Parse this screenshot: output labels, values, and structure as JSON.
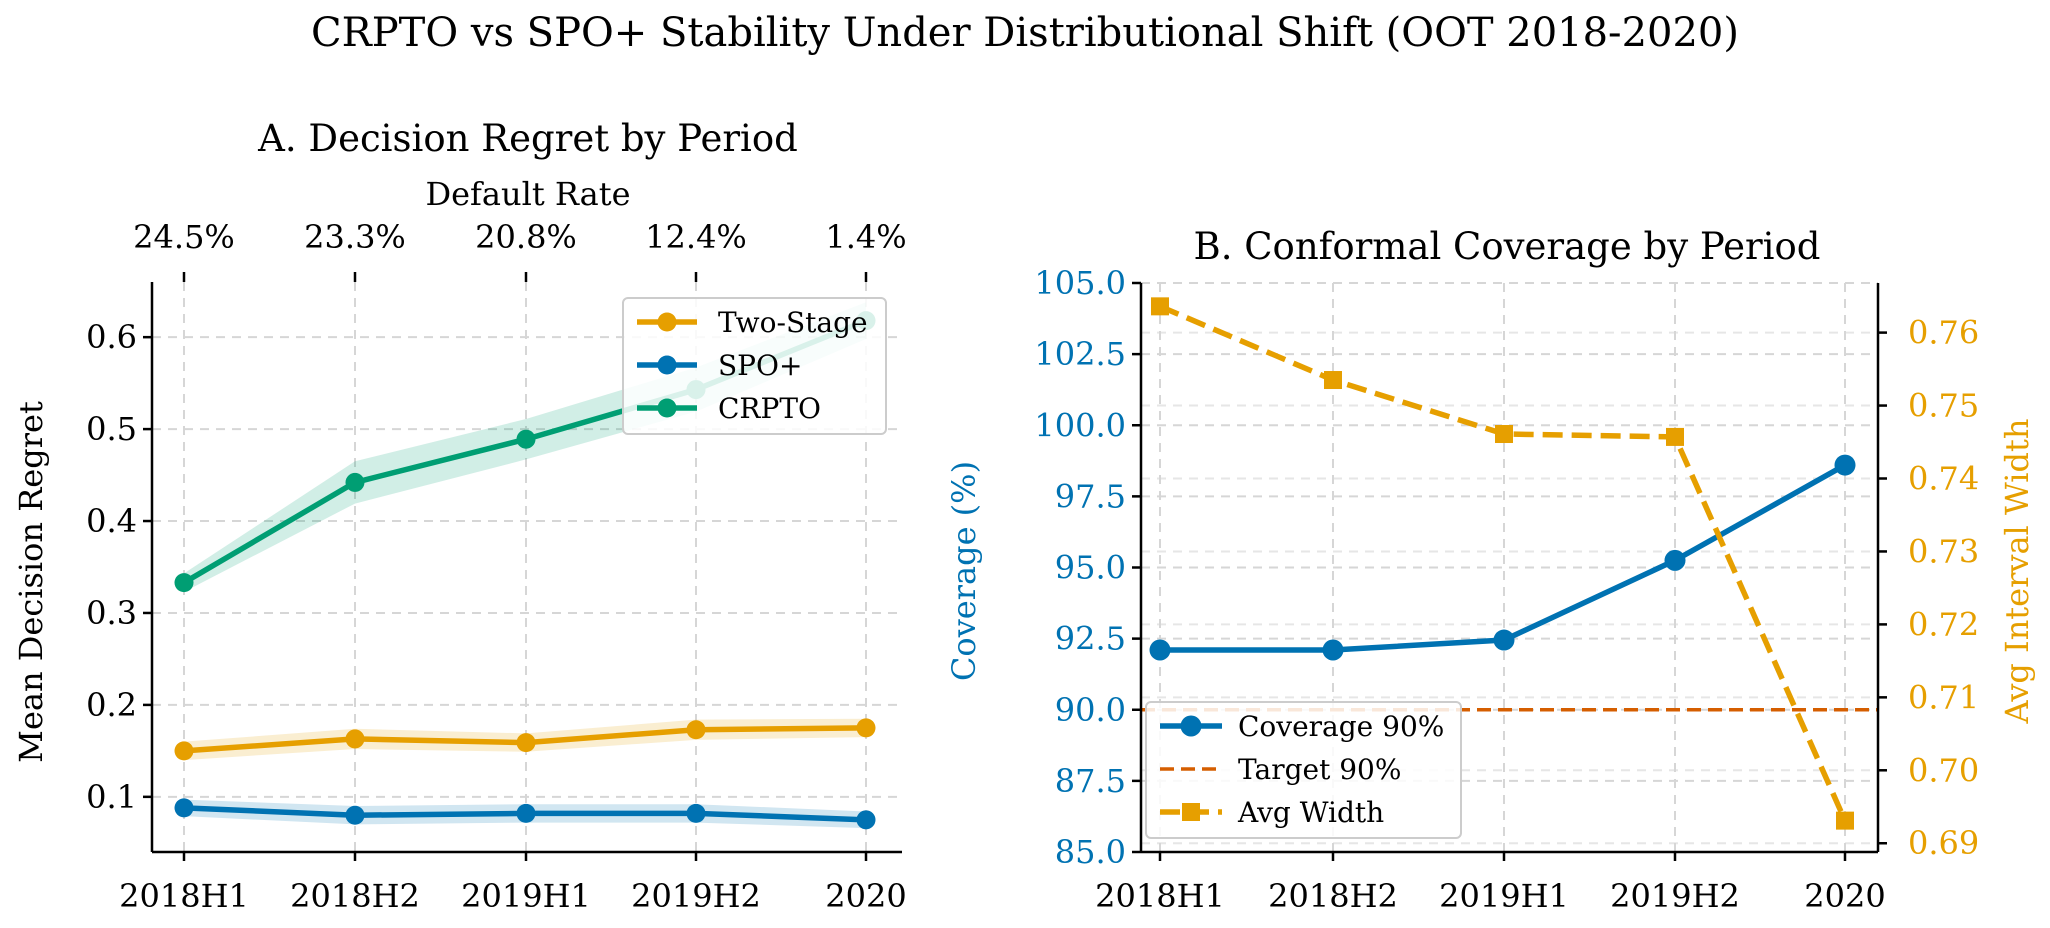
{
  "figure": {
    "suptitle": "CRPTO vs SPO+ Stability Under Distributional Shift (OOT 2018-2020)"
  },
  "colors": {
    "two_stage": "#E69F00",
    "spo_plus": "#0072B2",
    "crpto": "#009E73",
    "target": "#D55E00",
    "axis": "#000000",
    "grid": "#d6d6d6"
  },
  "chart_data": [
    {
      "id": "panel-a",
      "type": "line",
      "title": "A. Decision Regret by Period",
      "xlabel": "",
      "ylabel": "Mean Decision Regret",
      "categories": [
        "2018H1",
        "2018H2",
        "2019H1",
        "2019H2",
        "2020"
      ],
      "secondary_xlabel": "Default Rate",
      "secondary_x_ticks": [
        "24.5%",
        "23.3%",
        "20.8%",
        "12.4%",
        "1.4%"
      ],
      "ylim": [
        0.04,
        0.66
      ],
      "yticks": [
        0.1,
        0.2,
        0.3,
        0.4,
        0.5,
        0.6
      ],
      "ytick_labels": [
        "0.1",
        "0.2",
        "0.3",
        "0.4",
        "0.5",
        "0.6"
      ],
      "grid": true,
      "legend": "top-right",
      "series": [
        {
          "name": "Two-Stage",
          "color_key": "two_stage",
          "values": [
            0.15,
            0.163,
            0.159,
            0.173,
            0.175
          ],
          "band": [
            0.01,
            0.011,
            0.01,
            0.011,
            0.01
          ]
        },
        {
          "name": "SPO+",
          "color_key": "spo_plus",
          "values": [
            0.088,
            0.08,
            0.082,
            0.082,
            0.075
          ],
          "band": [
            0.009,
            0.01,
            0.01,
            0.01,
            0.009
          ]
        },
        {
          "name": "CRPTO",
          "color_key": "crpto",
          "values": [
            0.333,
            0.442,
            0.489,
            0.543,
            0.618
          ],
          "band": [
            0.01,
            0.023,
            0.022,
            0.024,
            0.02
          ]
        }
      ]
    },
    {
      "id": "panel-b",
      "type": "line",
      "title": "B. Conformal Coverage by Period",
      "xlabel": "",
      "ylabel": "Coverage (%)",
      "y2label": "Avg Interval Width",
      "categories": [
        "2018H1",
        "2018H2",
        "2019H1",
        "2019H2",
        "2020"
      ],
      "ylim": [
        85.0,
        105.0
      ],
      "yticks": [
        85.0,
        87.5,
        90.0,
        92.5,
        95.0,
        97.5,
        100.0,
        102.5,
        105.0
      ],
      "ytick_labels": [
        "85.0",
        "87.5",
        "90.0",
        "92.5",
        "95.0",
        "97.5",
        "100.0",
        "102.5",
        "105.0"
      ],
      "y2lim": [
        0.6888,
        0.7668
      ],
      "y2ticks": [
        0.69,
        0.7,
        0.71,
        0.72,
        0.73,
        0.74,
        0.75,
        0.76
      ],
      "y2tick_labels": [
        "0.69",
        "0.70",
        "0.71",
        "0.72",
        "0.73",
        "0.74",
        "0.75",
        "0.76"
      ],
      "grid": true,
      "legend": "bottom-left",
      "series": [
        {
          "name": "Coverage 90%",
          "color_key": "spo_plus",
          "axis": "left",
          "values": [
            92.1,
            92.1,
            92.45,
            95.25,
            98.6
          ]
        },
        {
          "name": "Avg Width",
          "color_key": "two_stage",
          "axis": "right",
          "values": [
            0.7636,
            0.7535,
            0.7461,
            0.7457,
            0.6931
          ]
        }
      ],
      "reference_lines": [
        {
          "name": "Target 90%",
          "color_key": "target",
          "axis": "left",
          "value": 90.0
        }
      ]
    }
  ]
}
